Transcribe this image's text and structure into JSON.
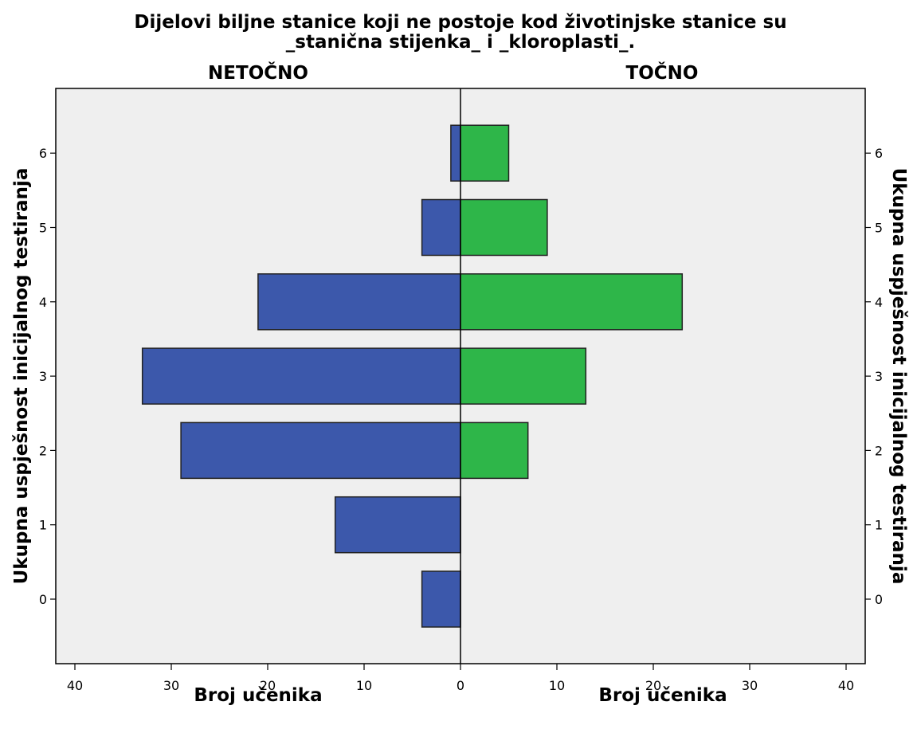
{
  "chart_data": {
    "type": "bar",
    "orientation": "horizontal",
    "layout": "population-pyramid",
    "title_lines": [
      "Dijelovi biljne stanice koji ne postoje kod životinjske stanice su",
      "_stanična stijenka_ i _kloroplasti_."
    ],
    "categories": [
      "0",
      "1",
      "2",
      "3",
      "4",
      "5",
      "6"
    ],
    "ylabel_left": "Ukupna uspješnost inicijalnog testiranja",
    "ylabel_right": "Ukupna uspješnost inicijalnog testiranja",
    "xlabel_left": "Broj učenika",
    "xlabel_right": "Broj učenika",
    "xlim": [
      0,
      42
    ],
    "x_ticks": [
      "0",
      "10",
      "20",
      "30",
      "40"
    ],
    "grid": false,
    "panel_background": "#efefef",
    "series": [
      {
        "name": "NETOČNO",
        "side": "left",
        "color": "#3c58ab",
        "values": [
          4,
          13,
          29,
          33,
          21,
          4,
          1
        ]
      },
      {
        "name": "TOČNO",
        "side": "right",
        "color": "#2eb649",
        "values": [
          0,
          0,
          7,
          13,
          23,
          9,
          5
        ]
      }
    ]
  }
}
